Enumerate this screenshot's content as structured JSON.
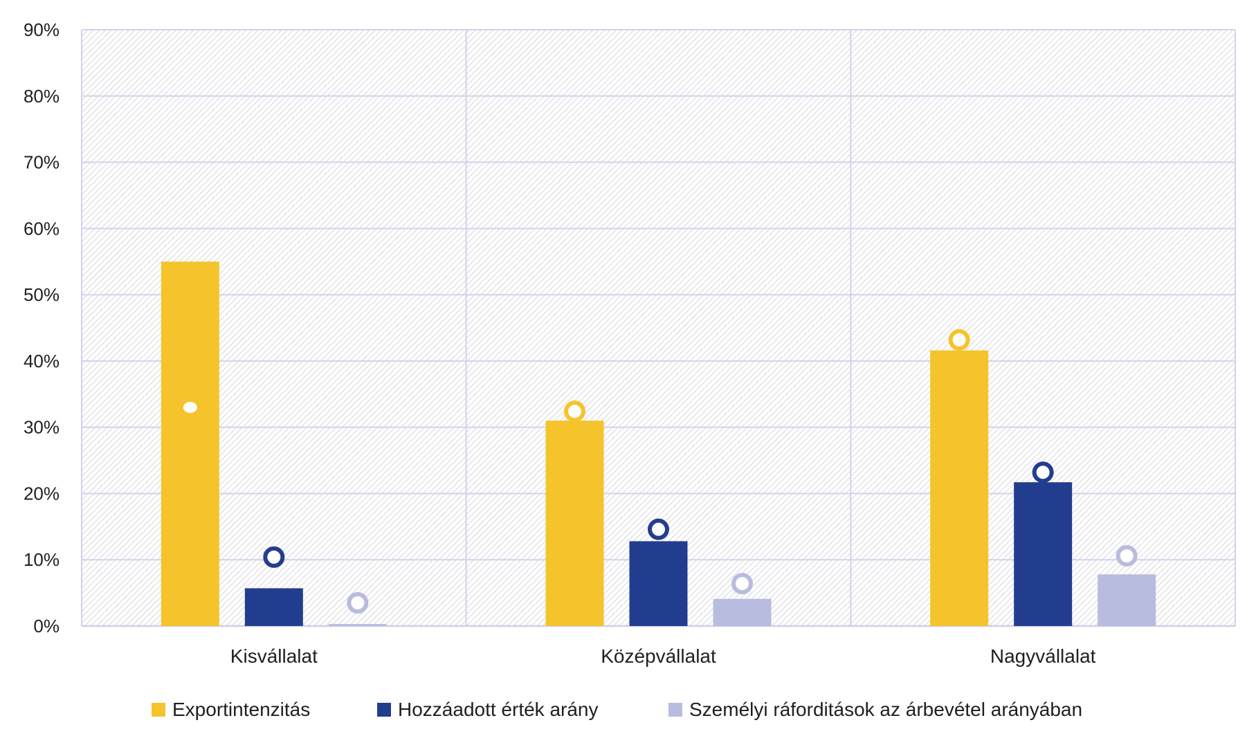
{
  "chart_data": {
    "type": "bar",
    "categories": [
      "Kisvállalat",
      "Középvállalat",
      "Nagyvállalat"
    ],
    "series": [
      {
        "name": "Exportintenzitás",
        "color": "#F5C32C",
        "values": [
          55,
          31,
          41.6
        ],
        "markers": [
          33,
          32.4,
          43.2
        ]
      },
      {
        "name": "Hozzáadott érték arány",
        "color": "#233D8E",
        "values": [
          5.7,
          12.8,
          21.7
        ],
        "markers": [
          10.4,
          14.6,
          23.2
        ]
      },
      {
        "name": "Személyi ráforditások az árbevétel arányában",
        "color": "#B8BCDE",
        "values": [
          0.3,
          4.1,
          7.8
        ],
        "markers": [
          3.5,
          6.4,
          10.6
        ]
      }
    ],
    "ylim": [
      0,
      90
    ],
    "yticks": [
      0,
      10,
      20,
      30,
      40,
      50,
      60,
      70,
      80,
      90
    ],
    "ytick_labels": [
      "0%",
      "10%",
      "20%",
      "30%",
      "40%",
      "50%",
      "60%",
      "70%",
      "80%",
      "90%"
    ],
    "grid": true,
    "legend_position": "bottom"
  }
}
